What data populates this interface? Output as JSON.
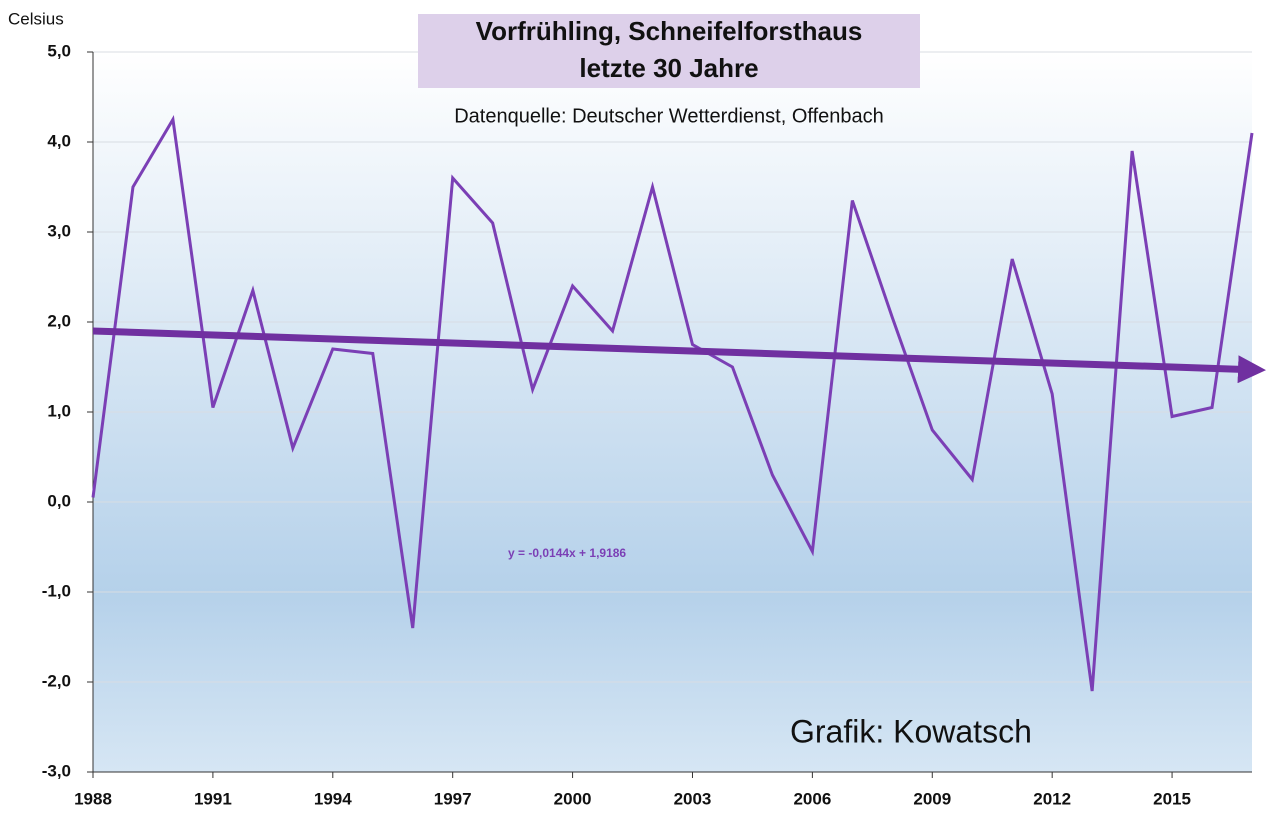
{
  "chart_data": {
    "type": "line",
    "title": [
      "Vorfrühling, Schneifelforsthaus",
      "letzte 30 Jahre"
    ],
    "subtitle": "Datenquelle: Deutscher Wetterdienst, Offenbach",
    "y_label": "Celsius",
    "annotations": [
      "y = -0,0144x + 1,9186",
      "Grafik: Kowatsch"
    ],
    "x": [
      1988,
      1989,
      1990,
      1991,
      1992,
      1993,
      1994,
      1995,
      1996,
      1997,
      1998,
      1999,
      2000,
      2001,
      2002,
      2003,
      2004,
      2005,
      2006,
      2007,
      2008,
      2009,
      2010,
      2011,
      2012,
      2013,
      2014,
      2015,
      2016,
      2017
    ],
    "series": [
      {
        "color": "#7b3fb5",
        "values": [
          0.05,
          3.5,
          4.25,
          1.05,
          2.35,
          0.6,
          1.7,
          1.65,
          -1.4,
          3.6,
          3.1,
          1.25,
          2.4,
          1.9,
          3.5,
          1.75,
          1.5,
          0.3,
          -0.55,
          3.35,
          2.05,
          0.8,
          0.25,
          2.7,
          1.2,
          -2.1,
          3.9,
          0.95,
          1.05,
          4.1
        ]
      }
    ],
    "trend_line": {
      "color": "#7030a0",
      "x": [
        1988,
        2017
      ],
      "values": [
        1.9,
        1.47
      ]
    },
    "xlim": [
      1988,
      2017
    ],
    "xticks": [
      1988,
      1991,
      1994,
      1997,
      2000,
      2003,
      2006,
      2009,
      2012,
      2015
    ],
    "ylim": [
      -3,
      5
    ],
    "yticks": [
      {
        "value": -3,
        "label": "-3,0"
      },
      {
        "value": -2,
        "label": "-2,0"
      },
      {
        "value": -1,
        "label": "-1,0"
      },
      {
        "value": 0,
        "label": "0,0"
      },
      {
        "value": 1,
        "label": "1,0"
      },
      {
        "value": 2,
        "label": "2,0"
      },
      {
        "value": 3,
        "label": "3,0"
      },
      {
        "value": 4,
        "label": "4,0"
      },
      {
        "value": 5,
        "label": "5,0"
      }
    ],
    "grid": true
  }
}
